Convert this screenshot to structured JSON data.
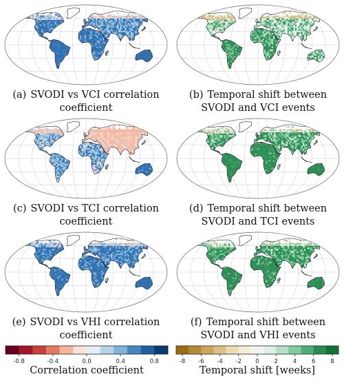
{
  "panels": [
    {
      "label": "(a)",
      "line1": "SVODI vs VCI correlation",
      "line2": "coefficient",
      "scheme": "corr",
      "variant": 0
    },
    {
      "label": "(b)",
      "line1": "Temporal shift between",
      "line2": "SVODI and VCI events",
      "scheme": "shift",
      "variant": 0
    },
    {
      "label": "(c)",
      "line1": "SVODI vs TCI correlation",
      "line2": "coefficient",
      "scheme": "corr",
      "variant": 1
    },
    {
      "label": "(d)",
      "line1": "Temporal shift between",
      "line2": "SVODI and TCI events",
      "scheme": "shift",
      "variant": 1
    },
    {
      "label": "(e)",
      "line1": "SVODI vs VHI correlation",
      "line2": "coefficient",
      "scheme": "corr",
      "variant": 2
    },
    {
      "label": "(f)",
      "line1": "Temporal shift between",
      "line2": "SVODI and VHI events",
      "scheme": "shift",
      "variant": 2
    }
  ],
  "colorbars": {
    "correlation": {
      "title": "Correlation coefficient",
      "ticks": [
        "-0.8",
        "-0.4",
        "0.0",
        "0.4",
        "0.8"
      ],
      "colors": [
        "#67001f",
        "#a5152a",
        "#c8413b",
        "#e07b5f",
        "#f4b59a",
        "#fbe2d6",
        "#e3eef6",
        "#b4d4e8",
        "#7fb2d6",
        "#4488bf",
        "#1f5fa1",
        "#0a3a74"
      ]
    },
    "temporal_shift": {
      "title": "Temporal shift [weeks]",
      "ticks": [
        "-8",
        "-6",
        "-4",
        "-2",
        "0",
        "2",
        "4",
        "6",
        "8"
      ],
      "colors": [
        "#9a6d11",
        "#b58b33",
        "#cba65c",
        "#dcc187",
        "#ebdbb2",
        "#f4ecd6",
        "#f3f3f3",
        "#ddf0e6",
        "#b4e0c6",
        "#83caa0",
        "#51ad76",
        "#2a8c52",
        "#127339"
      ]
    }
  },
  "colors": {
    "corr_pos": "#3d7fbf",
    "corr_weak": "#bcd6ea",
    "corr_neg": "#f3b9a4",
    "shift_pos": "#3a9a60",
    "shift_weak": "#cfe9da",
    "shift_neg": "#d6c089"
  }
}
